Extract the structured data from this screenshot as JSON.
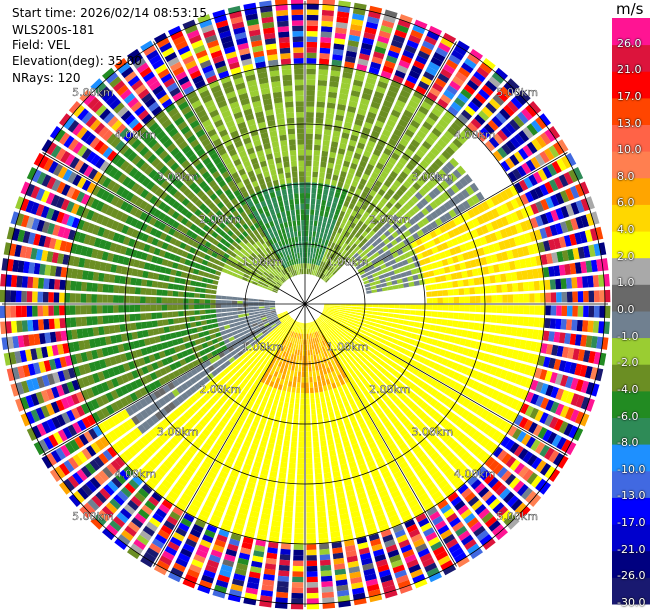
{
  "header": {
    "start_time": "Start time: 2026/02/14 08:53:15",
    "instrument": "WLS200s-181",
    "field": "Field: VEL",
    "elevation": "Elevation(deg): 35.00",
    "nrays": "NRays: 120"
  },
  "chart_data": {
    "type": "ppi",
    "field": "VEL",
    "unit": "m/s",
    "rays": 120,
    "elevation_deg": 35.0,
    "range_rings_km": [
      1,
      2,
      3,
      4,
      5
    ],
    "ring_labels": [
      "1.00km",
      "2.00km",
      "3.00km",
      "4.00km",
      "5.00km"
    ],
    "azimuth_spokes_deg": [
      0,
      30,
      60,
      90,
      120,
      150,
      180,
      210,
      240,
      270,
      300,
      330
    ],
    "colorbar": {
      "bounds": [
        -30,
        -26,
        -21,
        -17,
        -13,
        -10,
        -8,
        -6,
        -4,
        -2,
        -1,
        0,
        1,
        2,
        4,
        6,
        8,
        10,
        13,
        17,
        21,
        26,
        30
      ],
      "tick_labels": [
        "-30.0",
        "-26.0",
        "-21.0",
        "-17.0",
        "-13.0",
        "-10.0",
        "-8.0",
        "-6.0",
        "-4.0",
        "-2.0",
        "-1.0",
        "0.0",
        "1.0",
        "2.0",
        "4.0",
        "6.0",
        "8.0",
        "10.0",
        "13.0",
        "17.0",
        "21.0",
        "26.0"
      ],
      "colors": [
        "#191970",
        "#000080",
        "#0000cd",
        "#0000ff",
        "#4169e1",
        "#1e90ff",
        "#2e8b57",
        "#228b22",
        "#6b8e23",
        "#9acd32",
        "#708090",
        "#696969",
        "#a9a9a9",
        "#ffff00",
        "#ffd700",
        "#ffa500",
        "#ff7f50",
        "#ff6347",
        "#ff4500",
        "#ff0000",
        "#dc143c",
        "#ff1493"
      ]
    },
    "velocity_pattern": [
      {
        "azimuth_range_deg": [
          290,
          45
        ],
        "range_km": [
          0.5,
          4.0
        ],
        "velocity": -2.0
      },
      {
        "azimuth_range_deg": [
          330,
          20
        ],
        "range_km": [
          0.7,
          2.0
        ],
        "velocity": -6.0
      },
      {
        "azimuth_range_deg": [
          45,
          80
        ],
        "range_km": [
          1.0,
          3.5
        ],
        "velocity": -1.0
      },
      {
        "azimuth_range_deg": [
          60,
          120
        ],
        "range_km": [
          2.0,
          4.0
        ],
        "velocity": 4.0
      },
      {
        "azimuth_range_deg": [
          90,
          250
        ],
        "range_km": [
          0.3,
          4.0
        ],
        "velocity": 3.0
      },
      {
        "azimuth_range_deg": [
          150,
          210
        ],
        "range_km": [
          0.5,
          1.5
        ],
        "velocity": 6.0
      },
      {
        "azimuth_range_deg": [
          230,
          275
        ],
        "range_km": [
          0.5,
          3.5
        ],
        "velocity": -0.5
      },
      {
        "azimuth_range_deg": [
          240,
          330
        ],
        "range_km": [
          1.5,
          4.0
        ],
        "velocity": -4.0
      },
      {
        "azimuth_range_deg": [
          0,
          360
        ],
        "range_km": [
          4.0,
          5.1
        ],
        "velocity": "noise"
      }
    ]
  }
}
